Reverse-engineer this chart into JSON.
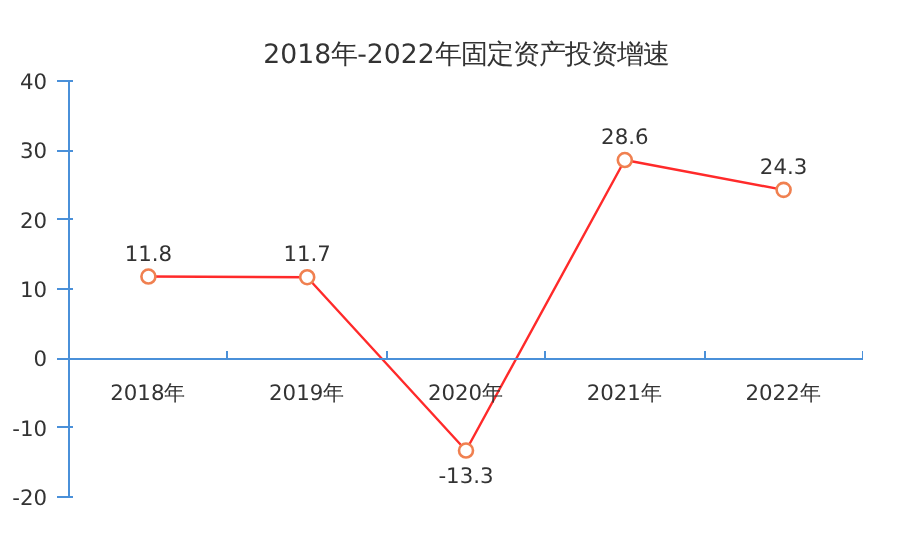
{
  "chart_data": {
    "type": "line",
    "title": "2018年-2022年固定资产投资增速",
    "categories": [
      "2018年",
      "2019年",
      "2020年",
      "2021年",
      "2022年"
    ],
    "series": [
      {
        "color": "#ff2a2a",
        "values": [
          11.8,
          11.7,
          -13.3,
          28.6,
          24.3
        ]
      }
    ],
    "ylim": [
      -20,
      40
    ],
    "yticks": [
      -20,
      -10,
      0,
      10,
      20,
      30,
      40
    ],
    "grid": false,
    "marker": "circle",
    "line_style": "solid",
    "data_labels": true
  }
}
